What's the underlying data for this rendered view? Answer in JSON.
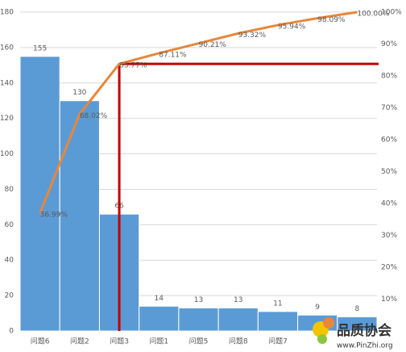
{
  "chart_data": {
    "type": "bar",
    "categories": [
      "问题6",
      "问题2",
      "问题3",
      "问题1",
      "问题5",
      "问题8",
      "问题7",
      null,
      null
    ],
    "series": [
      {
        "type": "bar",
        "color": "#5b9bd5",
        "values": [
          155,
          130,
          66,
          14,
          13,
          13,
          11,
          9,
          8
        ]
      },
      {
        "type": "line",
        "color": "#e8873a",
        "axis": "y2",
        "values": [
          36.99,
          68.02,
          83.77,
          87.11,
          90.21,
          93.32,
          95.94,
          98.09,
          100
        ],
        "value_labels": [
          "36.99%",
          "68.02%",
          "83.77%",
          "87.11%",
          "90.21%",
          "93.32%",
          "95.94%",
          "98.09%",
          "100.00%"
        ]
      }
    ],
    "marker_index": 2,
    "marker_color": "#c00000",
    "ylim": [
      0,
      180
    ],
    "yticks": [
      0,
      20,
      40,
      60,
      80,
      100,
      120,
      140,
      160,
      180
    ],
    "y2lim": [
      0,
      100
    ],
    "y2ticks": [
      {
        "value": 10,
        "label": "10%"
      },
      {
        "value": 20,
        "label": "20%"
      },
      {
        "value": 30,
        "label": "30%"
      },
      {
        "value": 40,
        "label": "40%"
      },
      {
        "value": 50,
        "label": "50%"
      },
      {
        "value": 60,
        "label": "60%"
      },
      {
        "value": 70,
        "label": "70%"
      },
      {
        "value": 80,
        "label": "80%"
      },
      {
        "value": 90,
        "label": "90%"
      },
      {
        "value": 100,
        "label": "100%"
      }
    ],
    "grid": true
  },
  "watermark": {
    "title": "品质协会",
    "url": "www.PinZhi.org"
  }
}
